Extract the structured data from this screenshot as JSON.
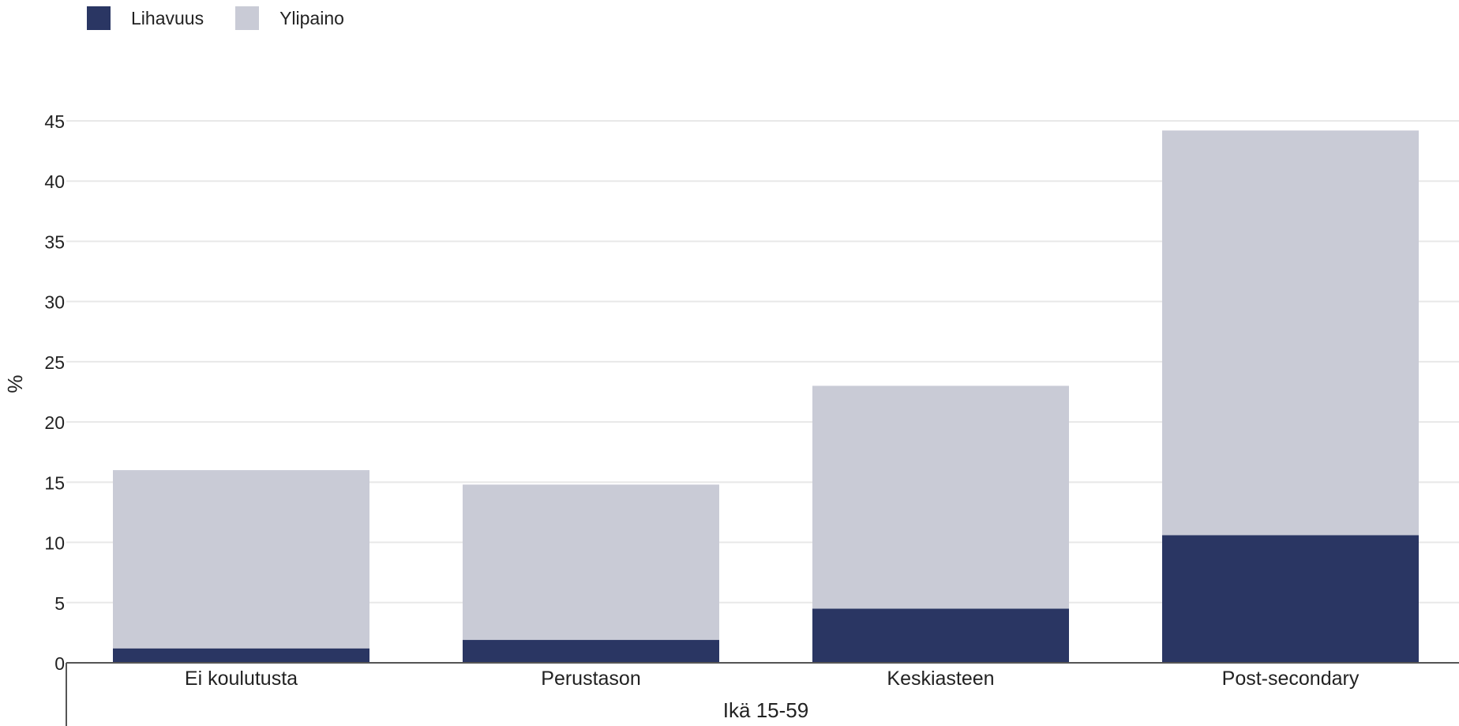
{
  "chart_data": {
    "type": "bar",
    "stacked": true,
    "categories": [
      "Ei koulutusta",
      "Perustason",
      "Keskiasteen",
      "Post-secondary"
    ],
    "series": [
      {
        "name": "Lihavuus",
        "color": "#2a3663",
        "values": [
          1.2,
          1.9,
          4.5,
          10.6
        ]
      },
      {
        "name": "Ylipaino",
        "color": "#c9cbd6",
        "values": [
          14.8,
          12.9,
          18.5,
          33.6
        ]
      }
    ],
    "xlabel": "Ikä 15-59",
    "ylabel": "%",
    "ylim": [
      0,
      45
    ],
    "yticks": [
      "0",
      "5",
      "10",
      "15",
      "20",
      "25",
      "30",
      "35",
      "40",
      "45"
    ],
    "grid": true,
    "legend_position": "top-left"
  }
}
